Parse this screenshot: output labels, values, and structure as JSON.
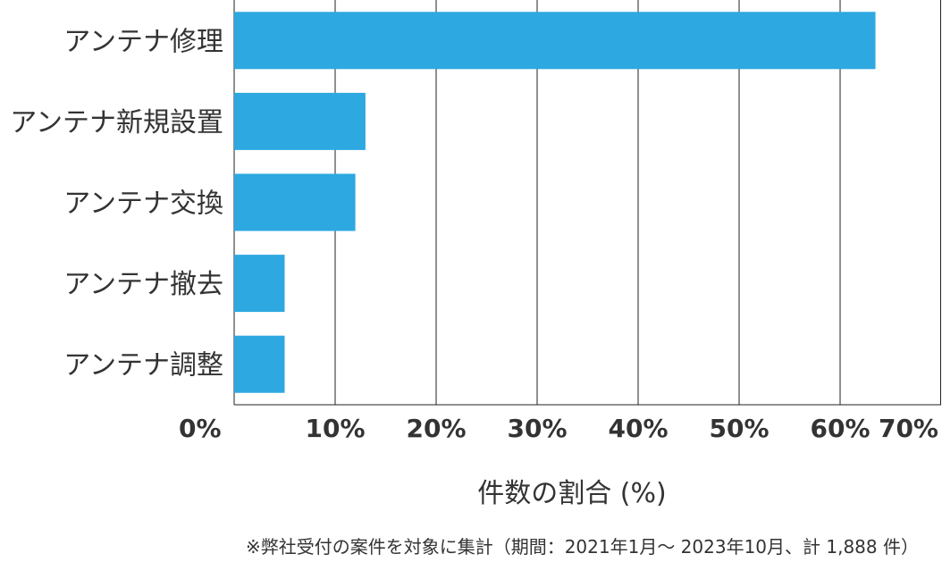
{
  "chart_data": {
    "type": "bar",
    "orientation": "horizontal",
    "categories": [
      "アンテナ修理",
      "アンテナ新規設置",
      "アンテナ交換",
      "アンテナ撤去",
      "アンテナ調整"
    ],
    "values": [
      63.5,
      13.0,
      12.0,
      5.0,
      5.0
    ],
    "xlim": [
      0,
      70
    ],
    "xticks": [
      0,
      10,
      20,
      30,
      40,
      50,
      60,
      70
    ],
    "tick_labels": [
      "0%",
      "10%",
      "20%",
      "30%",
      "40%",
      "50%",
      "60%",
      "70%"
    ],
    "xlabel": "件数の割合 (%)",
    "ylabel": "",
    "title": "",
    "grid": true,
    "bar_color": "#2EA8E0"
  },
  "footnote": "※弊社受付の案件を対象に集計（期間：2021年1月～ 2023年10月、計 1,888 件）"
}
